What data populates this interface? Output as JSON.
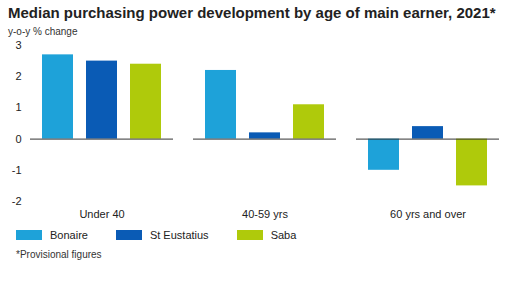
{
  "chart_data": {
    "type": "bar",
    "title": "Median purchasing power development by age of main earner, 2021*",
    "y_label": "y-o-y % change",
    "categories": [
      "Under 40",
      "40-59 yrs",
      "60 yrs and over"
    ],
    "series": [
      {
        "name": "Bonaire",
        "color": "#1ea2d9",
        "values": [
          2.7,
          2.2,
          -1.0
        ]
      },
      {
        "name": "St Eustatius",
        "color": "#0a5bb5",
        "values": [
          2.5,
          0.2,
          0.4
        ]
      },
      {
        "name": "Saba",
        "color": "#afca0b",
        "values": [
          2.4,
          1.1,
          -1.5
        ]
      }
    ],
    "ylim": [
      -2,
      3
    ],
    "yticks": [
      -2,
      -1,
      0,
      1,
      2,
      3
    ],
    "grid": false,
    "legend": "bottom",
    "footnote": "*Provisional figures"
  }
}
